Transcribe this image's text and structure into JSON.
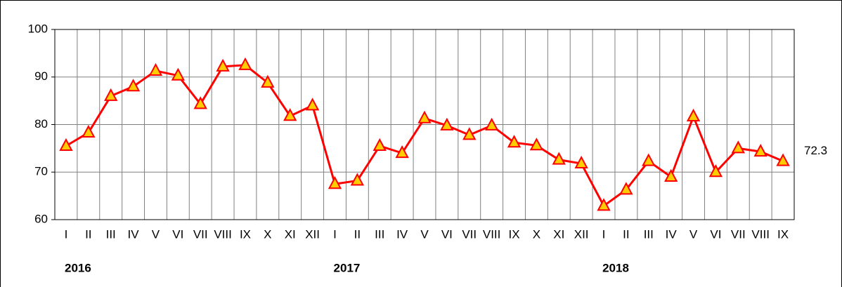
{
  "chart_data": {
    "type": "line",
    "categories": [
      "I",
      "II",
      "III",
      "IV",
      "V",
      "VI",
      "VII",
      "VIII",
      "IX",
      "X",
      "XI",
      "XII",
      "I",
      "II",
      "III",
      "IV",
      "V",
      "VI",
      "VII",
      "VIII",
      "IX",
      "X",
      "XI",
      "XII",
      "I",
      "II",
      "III",
      "IV",
      "V",
      "VI",
      "VII",
      "VIII",
      "IX"
    ],
    "year_labels": [
      "2016",
      "2017",
      "2018"
    ],
    "series": [
      {
        "color": "#ff0000",
        "marker_color": "#ffcc00",
        "values": [
          75.5,
          78.3,
          86.0,
          88.0,
          91.3,
          90.3,
          84.3,
          92.2,
          92.5,
          88.8,
          81.8,
          84.0,
          67.5,
          68.2,
          75.5,
          74.0,
          81.3,
          79.8,
          77.8,
          79.8,
          76.2,
          75.6,
          72.6,
          71.8,
          62.9,
          66.3,
          72.3,
          69.0,
          81.7,
          70.0,
          75.0,
          74.3,
          72.3
        ]
      }
    ],
    "ylim": [
      60,
      100
    ],
    "yticks": [
      60,
      70,
      80,
      90,
      100
    ],
    "grid": true
  }
}
